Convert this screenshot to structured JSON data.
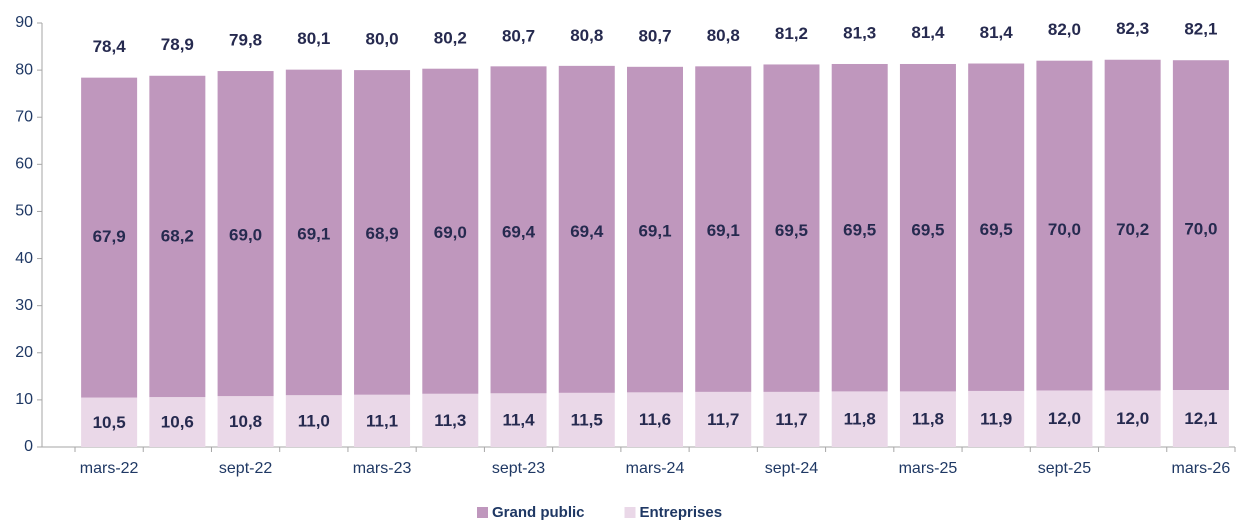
{
  "chart_data": {
    "type": "stacked_bar",
    "categories": [
      "mars-22",
      null,
      "sept-22",
      null,
      "mars-23",
      null,
      "sept-23",
      null,
      "mars-24",
      null,
      "sept-24",
      null,
      "mars-25",
      null,
      "sept-25",
      null,
      "mars-26"
    ],
    "series": [
      {
        "name": "Entreprises",
        "color": "#ead8e8",
        "values": [
          10.5,
          10.6,
          10.8,
          11.0,
          11.1,
          11.3,
          11.4,
          11.5,
          11.6,
          11.7,
          11.7,
          11.8,
          11.8,
          11.9,
          12.0,
          12.0,
          12.1
        ],
        "value_labels": [
          "10,5",
          "10,6",
          "10,8",
          "11,0",
          "11,1",
          "11,3",
          "11,4",
          "11,5",
          "11,6",
          "11,7",
          "11,7",
          "11,8",
          "11,8",
          "11,9",
          "12,0",
          "12,0",
          "12,1"
        ]
      },
      {
        "name": "Grand public",
        "color": "#bf97bd",
        "values": [
          67.9,
          68.2,
          69.0,
          69.1,
          68.9,
          69.0,
          69.4,
          69.4,
          69.1,
          69.1,
          69.5,
          69.5,
          69.5,
          69.5,
          70.0,
          70.2,
          70.0
        ],
        "value_labels": [
          "67,9",
          "68,2",
          "69,0",
          "69,1",
          "68,9",
          "69,0",
          "69,4",
          "69,4",
          "69,1",
          "69,1",
          "69,5",
          "69,5",
          "69,5",
          "69,5",
          "70,0",
          "70,2",
          "70,0"
        ]
      }
    ],
    "totals": {
      "values": [
        78.4,
        78.9,
        79.8,
        80.1,
        80.0,
        80.2,
        80.7,
        80.8,
        80.7,
        80.8,
        81.2,
        81.3,
        81.4,
        81.4,
        82.0,
        82.3,
        82.1
      ],
      "value_labels": [
        "78,4",
        "78,9",
        "79,8",
        "80,1",
        "80,0",
        "80,2",
        "80,7",
        "80,8",
        "80,7",
        "80,8",
        "81,2",
        "81,3",
        "81,4",
        "81,4",
        "82,0",
        "82,3",
        "82,1"
      ]
    },
    "ylim": [
      0,
      90
    ],
    "yticks": [
      0,
      10,
      20,
      30,
      40,
      50,
      60,
      70,
      80,
      90
    ],
    "legend": "bottom",
    "legend_order": [
      1,
      0
    ]
  }
}
